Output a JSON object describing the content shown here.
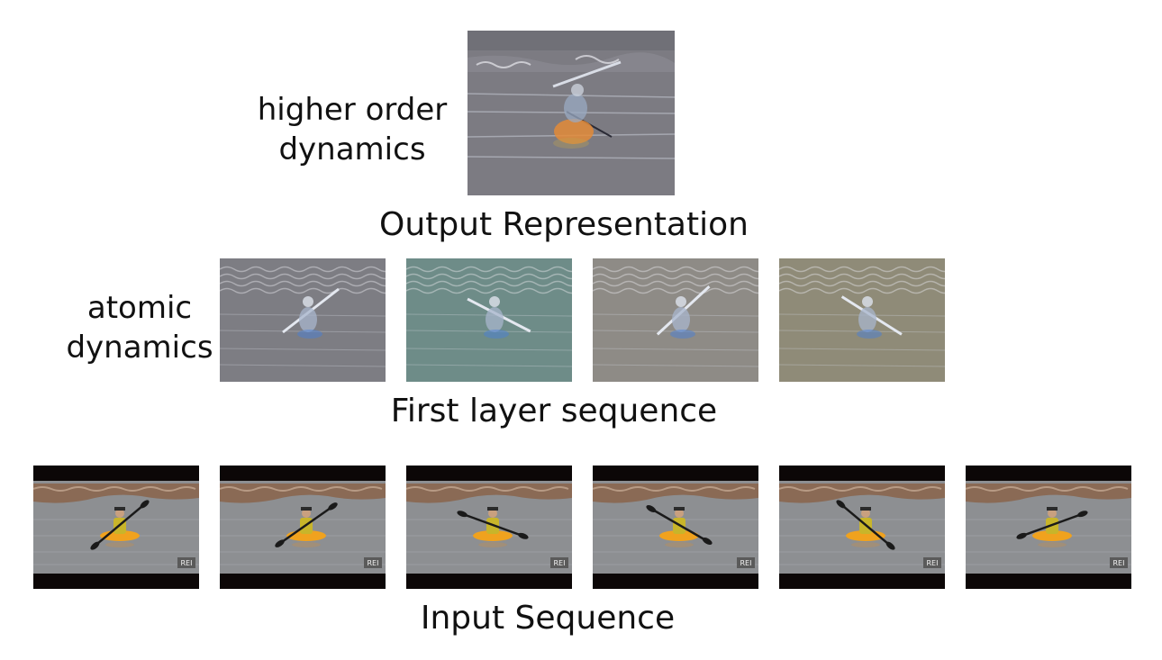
{
  "labels": {
    "higher_order_line1": "higher order",
    "higher_order_line2": "dynamics",
    "atomic_line1": "atomic",
    "atomic_line2": "dynamics"
  },
  "captions": {
    "output": "Output Representation",
    "first_layer": "First layer sequence",
    "input": "Input Sequence"
  },
  "watermark": "REI",
  "colors": {
    "output_bg": "#7c7b82",
    "first_layer_tints": [
      "#7d7d83",
      "#6e8c88",
      "#8e8b86",
      "#8f8b78"
    ],
    "water": "#8d8f92",
    "kayak": "#f0a21e",
    "vest": "#c8b52a"
  },
  "input_paddle_angles": [
    -40,
    -35,
    20,
    30,
    40,
    -20
  ]
}
